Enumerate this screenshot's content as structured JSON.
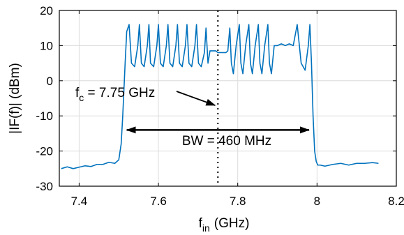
{
  "chart_data": {
    "type": "line",
    "title": "",
    "xlabel": {
      "main": "f",
      "sub": "in",
      "unit": "(GHz)"
    },
    "ylabel": "|IF(f)| (dBm)",
    "xlim": [
      7.35,
      8.2
    ],
    "ylim": [
      -30,
      20
    ],
    "grid": true,
    "xticks": [
      7.4,
      7.6,
      7.8,
      8,
      8.2
    ],
    "xtick_labels": [
      "7.4",
      "7.6",
      "7.8",
      "8",
      "8.2"
    ],
    "yticks": [
      20,
      10,
      0,
      -10,
      -20,
      -30
    ],
    "ytick_labels": [
      "20",
      "10",
      "0",
      "-10",
      "-20",
      "-30"
    ],
    "series": [
      {
        "color": "#0072bd",
        "x": [
          7.355,
          7.37,
          7.385,
          7.4,
          7.415,
          7.43,
          7.445,
          7.46,
          7.475,
          7.49,
          7.5,
          7.506,
          7.51,
          7.514,
          7.516,
          7.52,
          7.526,
          7.532,
          7.54,
          7.548,
          7.552,
          7.557,
          7.564,
          7.572,
          7.576,
          7.58,
          7.588,
          7.596,
          7.6,
          7.605,
          7.612,
          7.62,
          7.624,
          7.629,
          7.636,
          7.644,
          7.648,
          7.653,
          7.66,
          7.668,
          7.672,
          7.677,
          7.684,
          7.692,
          7.696,
          7.701,
          7.708,
          7.716,
          7.72,
          7.725,
          7.73,
          7.736,
          7.74,
          7.745,
          7.75,
          7.755,
          7.76,
          7.765,
          7.77,
          7.775,
          7.78,
          7.784,
          7.789,
          7.796,
          7.804,
          7.808,
          7.813,
          7.82,
          7.828,
          7.832,
          7.837,
          7.844,
          7.852,
          7.856,
          7.861,
          7.868,
          7.876,
          7.88,
          7.885,
          7.892,
          7.9,
          7.91,
          7.92,
          7.93,
          7.94,
          7.95,
          7.96,
          7.97,
          7.978,
          7.982,
          7.986,
          7.99,
          7.994,
          7.998,
          8.002,
          8.008,
          8.02,
          8.04,
          8.06,
          8.08,
          8.1,
          8.12,
          8.14,
          8.155
        ],
        "y": [
          -25,
          -24.5,
          -25,
          -24.6,
          -24.2,
          -24.4,
          -23.8,
          -23.8,
          -23.2,
          -23.5,
          -22.5,
          -18,
          -10,
          0,
          5,
          14,
          16,
          5,
          4,
          10,
          16,
          5,
          4,
          10,
          16,
          5,
          4,
          10,
          16,
          5,
          4,
          10,
          16,
          5,
          4,
          10,
          16,
          5,
          4,
          10,
          16,
          5,
          4,
          10,
          16,
          5,
          4,
          8,
          15,
          5,
          8.5,
          8.5,
          8.5,
          8.5,
          8,
          8,
          8,
          8,
          8,
          8.5,
          15,
          5,
          2,
          10,
          16,
          5,
          2,
          10,
          16,
          5,
          2,
          10,
          16,
          5,
          2,
          10,
          16,
          5,
          2,
          10,
          10,
          10.5,
          10,
          10.5,
          10,
          16,
          5,
          3,
          10,
          16,
          5,
          -10,
          -20,
          -23,
          -24,
          -24,
          -24.3,
          -23.8,
          -23.5,
          -24,
          -23.5,
          -23.5,
          -23.3,
          -23.5
        ]
      }
    ],
    "annotations": [
      {
        "text_main": "f",
        "text_sub": "c",
        "text_rest": " = 7.75 GHz",
        "kind": "vertical dotted line",
        "x": 7.75
      },
      {
        "text": "BW = 460 MHz",
        "kind": "double-headed arrow",
        "x_from": 7.52,
        "x_to": 7.98,
        "y": -14
      }
    ]
  }
}
